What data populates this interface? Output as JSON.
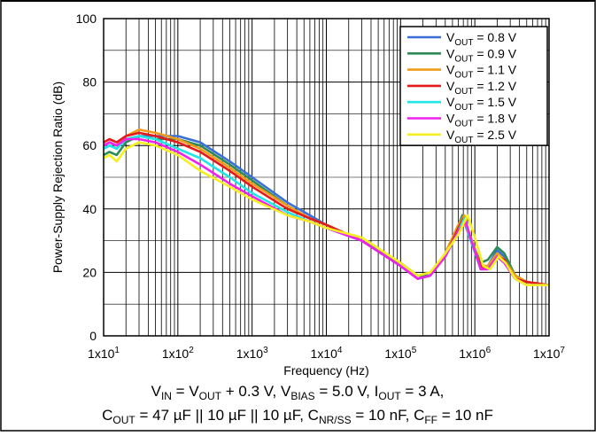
{
  "chart_data": {
    "type": "line",
    "title": "",
    "xlabel": "Frequency (Hz)",
    "ylabel": "Power-Supply Rejection Ratio (dB)",
    "xscale": "log",
    "xlim": [
      10,
      10000000
    ],
    "ylim": [
      0,
      100
    ],
    "grid": true,
    "legend_position": "top-right",
    "yticks": [
      0,
      20,
      40,
      60,
      80,
      100
    ],
    "xticks": [
      {
        "value": 10,
        "mantissa": "1x10",
        "exp": "1"
      },
      {
        "value": 100,
        "mantissa": "1x10",
        "exp": "2"
      },
      {
        "value": 1000,
        "mantissa": "1x10",
        "exp": "3"
      },
      {
        "value": 10000,
        "mantissa": "1x10",
        "exp": "4"
      },
      {
        "value": 100000,
        "mantissa": "1x10",
        "exp": "5"
      },
      {
        "value": 1000000,
        "mantissa": "1x10",
        "exp": "6"
      },
      {
        "value": 10000000,
        "mantissa": "1x10",
        "exp": "7"
      }
    ],
    "series": [
      {
        "label_main": "V",
        "label_sub": "OUT",
        "label_rest": " = 0.8 V",
        "color": "#3a6fd8",
        "points": [
          [
            10,
            59
          ],
          [
            12,
            60
          ],
          [
            15,
            59
          ],
          [
            20,
            62
          ],
          [
            30,
            63
          ],
          [
            50,
            63
          ],
          [
            100,
            63
          ],
          [
            200,
            61
          ],
          [
            500,
            55
          ],
          [
            1000,
            50
          ],
          [
            3000,
            42
          ],
          [
            6000,
            38
          ],
          [
            10000,
            35
          ],
          [
            30000,
            30
          ],
          [
            100000,
            23
          ],
          [
            170000,
            19
          ],
          [
            250000,
            19
          ],
          [
            400000,
            26
          ],
          [
            600000,
            34
          ],
          [
            700000,
            38
          ],
          [
            850000,
            32
          ],
          [
            1200000,
            22
          ],
          [
            1500000,
            22
          ],
          [
            2000000,
            27
          ],
          [
            2500000,
            25
          ],
          [
            3500000,
            19
          ],
          [
            5000000,
            17
          ],
          [
            10000000,
            16
          ]
        ]
      },
      {
        "label_main": "V",
        "label_sub": "OUT",
        "label_rest": " = 0.9 V",
        "color": "#2e8b57",
        "points": [
          [
            10,
            57
          ],
          [
            12,
            58
          ],
          [
            15,
            57
          ],
          [
            20,
            61
          ],
          [
            30,
            63
          ],
          [
            50,
            62
          ],
          [
            100,
            62
          ],
          [
            200,
            60
          ],
          [
            500,
            54
          ],
          [
            1000,
            49
          ],
          [
            3000,
            41
          ],
          [
            6000,
            37
          ],
          [
            10000,
            35
          ],
          [
            30000,
            30
          ],
          [
            100000,
            23
          ],
          [
            170000,
            19
          ],
          [
            250000,
            19
          ],
          [
            400000,
            26
          ],
          [
            600000,
            35
          ],
          [
            680000,
            38
          ],
          [
            800000,
            33
          ],
          [
            1200000,
            23
          ],
          [
            1500000,
            24
          ],
          [
            2000000,
            28
          ],
          [
            2500000,
            26
          ],
          [
            3500000,
            19
          ],
          [
            5000000,
            17
          ],
          [
            10000000,
            16
          ]
        ]
      },
      {
        "label_main": "V",
        "label_sub": "OUT",
        "label_rest": " = 1.1 V",
        "color": "#f29a1a",
        "points": [
          [
            10,
            60
          ],
          [
            12,
            61
          ],
          [
            15,
            60
          ],
          [
            20,
            63
          ],
          [
            30,
            65
          ],
          [
            50,
            64
          ],
          [
            100,
            62
          ],
          [
            200,
            59
          ],
          [
            500,
            53
          ],
          [
            1000,
            48
          ],
          [
            3000,
            41
          ],
          [
            6000,
            37
          ],
          [
            10000,
            35
          ],
          [
            30000,
            30
          ],
          [
            100000,
            22
          ],
          [
            170000,
            18
          ],
          [
            250000,
            19
          ],
          [
            400000,
            26
          ],
          [
            600000,
            35
          ],
          [
            720000,
            38
          ],
          [
            850000,
            32
          ],
          [
            1200000,
            22
          ],
          [
            1500000,
            22
          ],
          [
            2000000,
            26
          ],
          [
            2500000,
            24
          ],
          [
            3500000,
            19
          ],
          [
            5000000,
            17
          ],
          [
            10000000,
            16
          ]
        ]
      },
      {
        "label_main": "V",
        "label_sub": "OUT",
        "label_rest": " = 1.2 V",
        "color": "#e41a1a",
        "points": [
          [
            10,
            61
          ],
          [
            12,
            62
          ],
          [
            15,
            61
          ],
          [
            20,
            63
          ],
          [
            30,
            64
          ],
          [
            50,
            63
          ],
          [
            100,
            61
          ],
          [
            200,
            58
          ],
          [
            500,
            52
          ],
          [
            1000,
            47
          ],
          [
            3000,
            40
          ],
          [
            6000,
            37
          ],
          [
            10000,
            35
          ],
          [
            30000,
            30
          ],
          [
            100000,
            22
          ],
          [
            170000,
            18
          ],
          [
            250000,
            19
          ],
          [
            400000,
            25
          ],
          [
            600000,
            34
          ],
          [
            700000,
            37
          ],
          [
            850000,
            31
          ],
          [
            1200000,
            22
          ],
          [
            1500000,
            21
          ],
          [
            2000000,
            25
          ],
          [
            2500000,
            24
          ],
          [
            3500000,
            18
          ],
          [
            5000000,
            17
          ],
          [
            10000000,
            16
          ]
        ]
      },
      {
        "label_main": "V",
        "label_sub": "OUT",
        "label_rest": " = 1.5 V",
        "color": "#22e6e6",
        "points": [
          [
            10,
            59
          ],
          [
            12,
            60
          ],
          [
            15,
            59
          ],
          [
            20,
            62
          ],
          [
            30,
            63
          ],
          [
            50,
            62
          ],
          [
            100,
            59
          ],
          [
            200,
            56
          ],
          [
            500,
            50
          ],
          [
            1000,
            45
          ],
          [
            3000,
            39
          ],
          [
            6000,
            36
          ],
          [
            10000,
            34
          ],
          [
            30000,
            30
          ],
          [
            100000,
            22
          ],
          [
            170000,
            18
          ],
          [
            250000,
            19
          ],
          [
            400000,
            25
          ],
          [
            600000,
            33
          ],
          [
            720000,
            37
          ],
          [
            850000,
            31
          ],
          [
            1200000,
            21
          ],
          [
            1500000,
            21
          ],
          [
            2000000,
            25
          ],
          [
            2500000,
            23
          ],
          [
            3500000,
            18
          ],
          [
            5000000,
            16
          ],
          [
            10000000,
            16
          ]
        ]
      },
      {
        "label_main": "V",
        "label_sub": "OUT",
        "label_rest": " = 1.8 V",
        "color": "#ee22ee",
        "points": [
          [
            10,
            60
          ],
          [
            12,
            61
          ],
          [
            15,
            60
          ],
          [
            20,
            62
          ],
          [
            30,
            62
          ],
          [
            50,
            61
          ],
          [
            100,
            58
          ],
          [
            200,
            54
          ],
          [
            500,
            48
          ],
          [
            1000,
            44
          ],
          [
            3000,
            38
          ],
          [
            6000,
            36
          ],
          [
            10000,
            34
          ],
          [
            30000,
            30
          ],
          [
            100000,
            22
          ],
          [
            170000,
            18
          ],
          [
            250000,
            19
          ],
          [
            400000,
            25
          ],
          [
            600000,
            33
          ],
          [
            750000,
            36
          ],
          [
            900000,
            30
          ],
          [
            1200000,
            21
          ],
          [
            1500000,
            21
          ],
          [
            2000000,
            25
          ],
          [
            2500000,
            23
          ],
          [
            3500000,
            18
          ],
          [
            5000000,
            16
          ],
          [
            10000000,
            16
          ]
        ]
      },
      {
        "label_main": "V",
        "label_sub": "OUT",
        "label_rest": " = 2.5 V",
        "color": "#f5ef22",
        "points": [
          [
            10,
            56
          ],
          [
            12,
            57
          ],
          [
            15,
            55
          ],
          [
            20,
            59
          ],
          [
            30,
            61
          ],
          [
            50,
            60
          ],
          [
            100,
            57
          ],
          [
            200,
            52
          ],
          [
            500,
            47
          ],
          [
            1000,
            43
          ],
          [
            3000,
            38
          ],
          [
            6000,
            36
          ],
          [
            10000,
            34
          ],
          [
            30000,
            31
          ],
          [
            100000,
            23
          ],
          [
            170000,
            19
          ],
          [
            250000,
            20
          ],
          [
            400000,
            26
          ],
          [
            600000,
            32
          ],
          [
            800000,
            38
          ],
          [
            1000000,
            31
          ],
          [
            1300000,
            22
          ],
          [
            1600000,
            21
          ],
          [
            2100000,
            25
          ],
          [
            2600000,
            23
          ],
          [
            3500000,
            18
          ],
          [
            5000000,
            16
          ],
          [
            10000000,
            16
          ]
        ]
      }
    ],
    "footnote_line1": [
      {
        "t": "V",
        "s": false
      },
      {
        "t": "IN",
        "s": true
      },
      {
        "t": " = V",
        "s": false
      },
      {
        "t": "OUT",
        "s": true
      },
      {
        "t": " + 0.3 V, V",
        "s": false
      },
      {
        "t": "BIAS",
        "s": true
      },
      {
        "t": " = 5.0 V, I",
        "s": false
      },
      {
        "t": "OUT",
        "s": true
      },
      {
        "t": " = 3 A,",
        "s": false
      }
    ],
    "footnote_line2": [
      {
        "t": "C",
        "s": false
      },
      {
        "t": "OUT",
        "s": true
      },
      {
        "t": " = 47 µF || 10 µF || 10 µF, C",
        "s": false
      },
      {
        "t": "NR/SS",
        "s": true
      },
      {
        "t": " = 10 nF, C",
        "s": false
      },
      {
        "t": "FF",
        "s": true
      },
      {
        "t": " = 10 nF",
        "s": false
      }
    ]
  }
}
